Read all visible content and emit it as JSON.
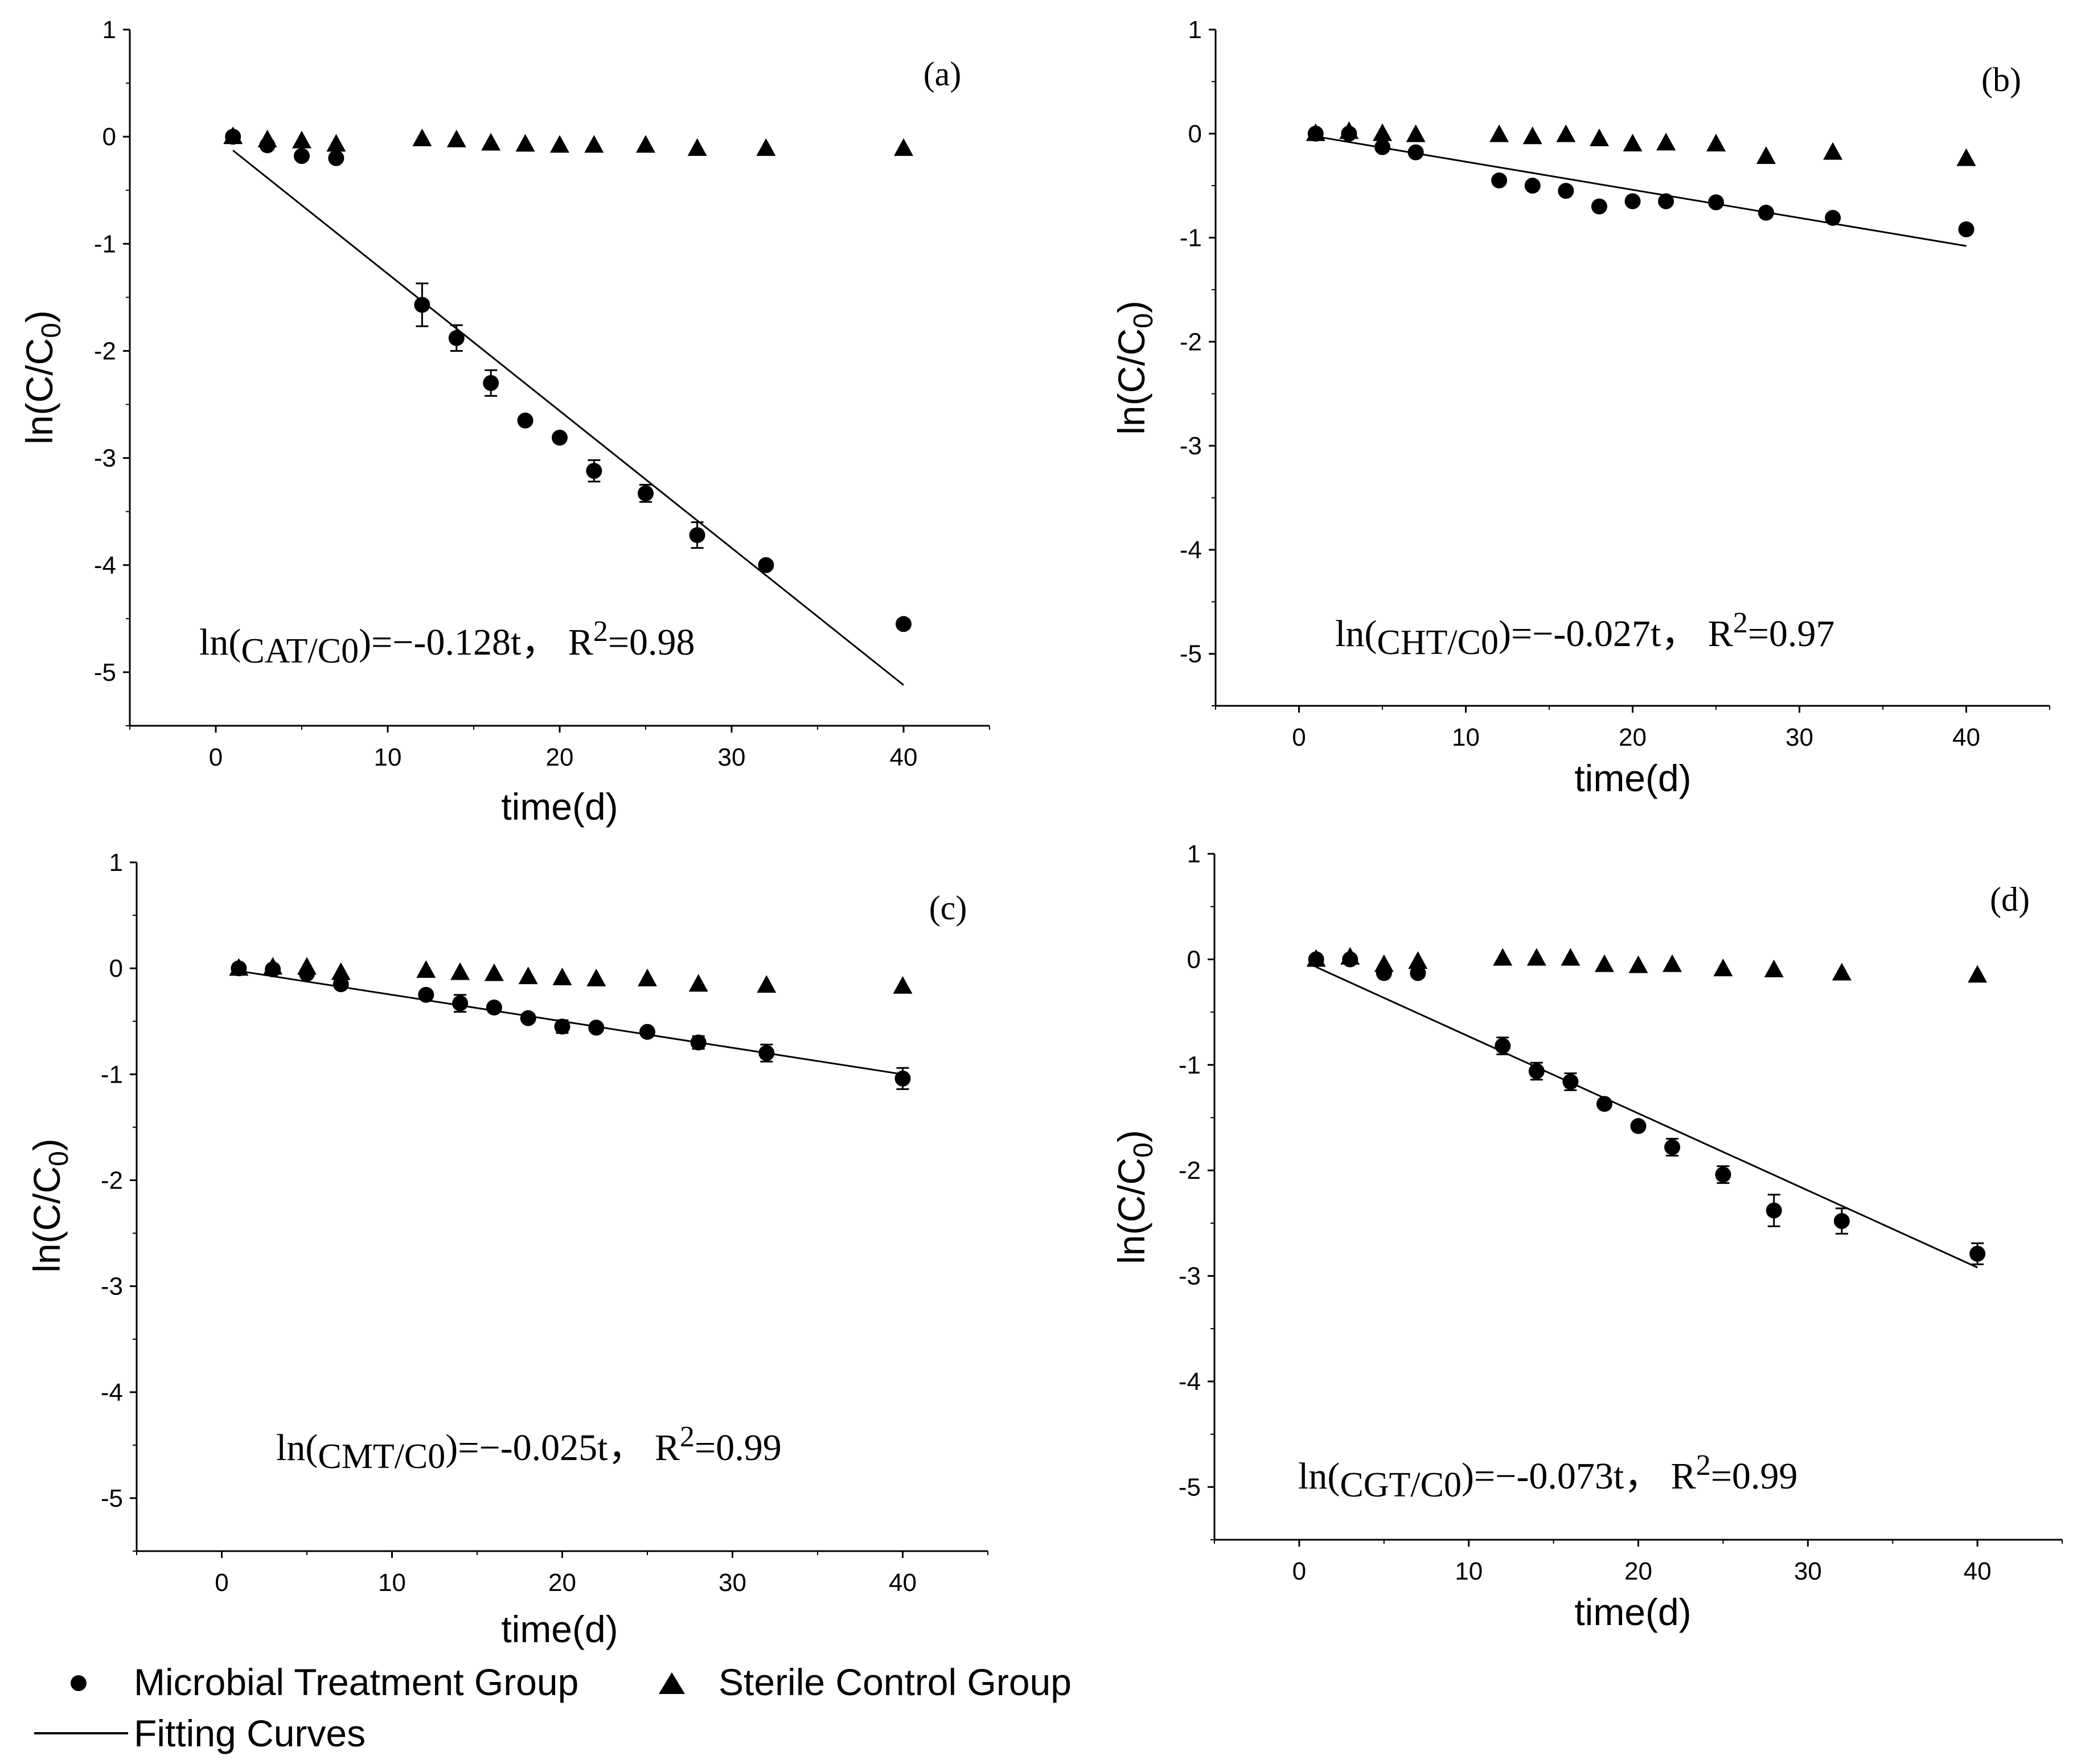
{
  "chart_data": [
    {
      "type": "scatter",
      "panel_label": "(a)",
      "xlabel": "time(d)",
      "ylabel": "ln(C/C0)",
      "xlim": [
        -5,
        45
      ],
      "ylim": [
        -5.5,
        1
      ],
      "xticks": [
        0,
        10,
        20,
        30,
        40
      ],
      "yticks": [
        1,
        0,
        -1,
        -2,
        -3,
        -4,
        -5
      ],
      "equation": {
        "lhs": "ln(",
        "c": "C",
        "sub": "AT",
        "mid": "/C",
        "zero": "0",
        "rhs": ")=−-0.128t， R",
        "sup": "2",
        "tail": "=0.98"
      },
      "fit": {
        "slope": -0.128,
        "intercept": 0,
        "x_range": [
          1,
          40
        ]
      },
      "series": [
        {
          "name": "Microbial Treatment Group",
          "marker": "circle",
          "x": [
            1,
            3,
            5,
            7,
            12,
            14,
            16,
            18,
            20,
            22,
            25,
            28,
            32,
            40
          ],
          "y": [
            0,
            -0.08,
            -0.18,
            -0.2,
            -1.57,
            -1.88,
            -2.3,
            -2.65,
            -2.81,
            -3.12,
            -3.33,
            -3.72,
            -4.0,
            -4.55
          ],
          "err": [
            0,
            0,
            0,
            0,
            0.2,
            0.12,
            0.12,
            0,
            0,
            0.1,
            0.08,
            0.12,
            0,
            0
          ]
        },
        {
          "name": "Sterile Control Group",
          "marker": "triangle",
          "x": [
            1,
            3,
            5,
            7,
            12,
            14,
            16,
            18,
            20,
            22,
            25,
            28,
            32,
            40
          ],
          "y": [
            0,
            -0.03,
            -0.04,
            -0.07,
            -0.02,
            -0.03,
            -0.06,
            -0.07,
            -0.08,
            -0.08,
            -0.08,
            -0.11,
            -0.11,
            -0.11
          ]
        }
      ]
    },
    {
      "type": "scatter",
      "panel_label": "(b)",
      "xlabel": "time(d)",
      "ylabel": "ln(C/C0)",
      "xlim": [
        -5,
        45
      ],
      "ylim": [
        -5.5,
        1
      ],
      "xticks": [
        0,
        10,
        20,
        30,
        40
      ],
      "yticks": [
        1,
        0,
        -1,
        -2,
        -3,
        -4,
        -5
      ],
      "equation": {
        "lhs": "ln(",
        "c": "C",
        "sub": "HT",
        "mid": "/C",
        "zero": "0",
        "rhs": ")=−-0.027t， R",
        "sup": "2",
        "tail": "=0.97"
      },
      "fit": {
        "slope": -0.027,
        "intercept": 0,
        "x_range": [
          1,
          40
        ]
      },
      "series": [
        {
          "name": "Microbial Treatment Group",
          "marker": "circle",
          "x": [
            1,
            3,
            5,
            7,
            12,
            14,
            16,
            18,
            20,
            22,
            25,
            28,
            32,
            40
          ],
          "y": [
            0,
            0,
            -0.13,
            -0.18,
            -0.45,
            -0.5,
            -0.55,
            -0.7,
            -0.65,
            -0.65,
            -0.66,
            -0.76,
            -0.81,
            -0.92
          ],
          "err": [
            0,
            0,
            0,
            0,
            0,
            0,
            0,
            0,
            0,
            0,
            0,
            0,
            0,
            0
          ]
        },
        {
          "name": "Sterile Control Group",
          "marker": "triangle",
          "x": [
            1,
            3,
            5,
            7,
            12,
            14,
            16,
            18,
            20,
            22,
            25,
            28,
            32,
            40
          ],
          "y": [
            0,
            0.02,
            0,
            -0.01,
            -0.01,
            -0.03,
            -0.01,
            -0.05,
            -0.1,
            -0.09,
            -0.1,
            -0.22,
            -0.18,
            -0.24
          ]
        }
      ]
    },
    {
      "type": "scatter",
      "panel_label": "(c)",
      "xlabel": "time(d)",
      "ylabel": "ln(C/C0)",
      "xlim": [
        -5,
        45
      ],
      "ylim": [
        -5.5,
        1
      ],
      "xticks": [
        0,
        10,
        20,
        30,
        40
      ],
      "yticks": [
        1,
        0,
        -1,
        -2,
        -3,
        -4,
        -5
      ],
      "equation": {
        "lhs": "ln(",
        "c": "C",
        "sub": "MT",
        "mid": "/C",
        "zero": "0",
        "rhs": ")=−-0.025t， R",
        "sup": "2",
        "tail": "=0.99"
      },
      "fit": {
        "slope": -0.025,
        "intercept": 0,
        "x_range": [
          1,
          40
        ]
      },
      "series": [
        {
          "name": "Microbial Treatment Group",
          "marker": "circle",
          "x": [
            1,
            3,
            5,
            7,
            12,
            14,
            16,
            18,
            20,
            22,
            25,
            28,
            32,
            40
          ],
          "y": [
            0,
            -0.01,
            -0.05,
            -0.15,
            -0.25,
            -0.33,
            -0.37,
            -0.47,
            -0.55,
            -0.56,
            -0.6,
            -0.7,
            -0.8,
            -1.04
          ],
          "err": [
            0,
            0,
            0,
            0,
            0,
            0.08,
            0,
            0,
            0.06,
            0,
            0,
            0.06,
            0.08,
            0.1
          ]
        },
        {
          "name": "Sterile Control Group",
          "marker": "triangle",
          "x": [
            1,
            3,
            5,
            7,
            12,
            14,
            16,
            18,
            20,
            22,
            25,
            28,
            32,
            40
          ],
          "y": [
            0,
            0.01,
            0.01,
            -0.04,
            -0.02,
            -0.04,
            -0.05,
            -0.08,
            -0.09,
            -0.1,
            -0.1,
            -0.15,
            -0.16,
            -0.17
          ]
        }
      ]
    },
    {
      "type": "scatter",
      "panel_label": "(d)",
      "xlabel": "time(d)",
      "ylabel": "ln(C/C0)",
      "xlim": [
        -5,
        45
      ],
      "ylim": [
        -5.5,
        1
      ],
      "xticks": [
        0,
        10,
        20,
        30,
        40
      ],
      "yticks": [
        1,
        0,
        -1,
        -2,
        -3,
        -4,
        -5
      ],
      "equation": {
        "lhs": "ln(",
        "c": "C",
        "sub": "GT",
        "mid": "/C",
        "zero": "0",
        "rhs": ")=−-0.073t， R",
        "sup": "2",
        "tail": "=0.99"
      },
      "fit": {
        "slope": -0.073,
        "intercept": 0,
        "x_range": [
          1,
          40
        ]
      },
      "series": [
        {
          "name": "Microbial Treatment Group",
          "marker": "circle",
          "x": [
            1,
            3,
            5,
            7,
            12,
            14,
            16,
            18,
            20,
            22,
            25,
            28,
            32,
            40
          ],
          "y": [
            0,
            0,
            -0.13,
            -0.13,
            -0.82,
            -1.06,
            -1.16,
            -1.37,
            -1.58,
            -1.78,
            -2.04,
            -2.38,
            -2.48,
            -2.79
          ],
          "err": [
            0,
            0,
            0,
            0,
            0.08,
            0.08,
            0.08,
            0,
            0,
            0.08,
            0.08,
            0.15,
            0.12,
            0.1
          ]
        },
        {
          "name": "Sterile Control Group",
          "marker": "triangle",
          "x": [
            1,
            3,
            5,
            7,
            12,
            14,
            16,
            18,
            20,
            22,
            25,
            28,
            32,
            40
          ],
          "y": [
            0,
            0.02,
            -0.05,
            -0.02,
            0.01,
            0.01,
            0.01,
            -0.05,
            -0.06,
            -0.05,
            -0.09,
            -0.1,
            -0.13,
            -0.15
          ]
        }
      ]
    }
  ],
  "legend": {
    "microbial": "Microbial Treatment Group",
    "sterile": "Sterile Control Group",
    "fit": "Fitting Curves"
  }
}
